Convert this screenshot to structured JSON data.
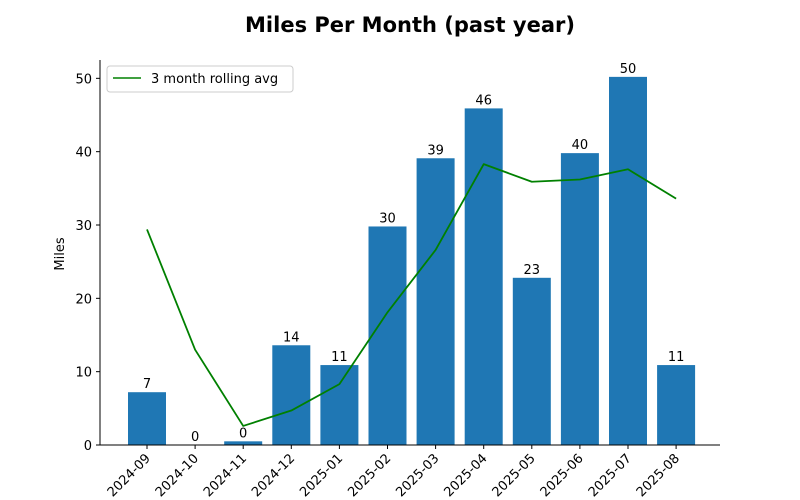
{
  "chart_data": {
    "type": "bar",
    "title": "Miles Per Month (past year)",
    "xlabel": "",
    "ylabel": "Miles",
    "ylim": [
      0,
      52.5
    ],
    "yticks": [
      0,
      10,
      20,
      30,
      40,
      50
    ],
    "categories": [
      "2024-09",
      "2024-10",
      "2024-11",
      "2024-12",
      "2025-01",
      "2025-02",
      "2025-03",
      "2025-04",
      "2025-05",
      "2025-06",
      "2025-07",
      "2025-08"
    ],
    "series": [
      {
        "name": "Miles",
        "type": "bar",
        "color": "#1f77b4",
        "values": [
          7.2,
          0.0,
          0.5,
          13.6,
          10.9,
          29.8,
          39.1,
          45.9,
          22.8,
          39.8,
          50.2,
          10.9
        ],
        "labels": [
          "7",
          "0",
          "0",
          "14",
          "11",
          "30",
          "39",
          "46",
          "23",
          "40",
          "50",
          "11"
        ]
      },
      {
        "name": "3 month rolling avg",
        "type": "line",
        "color": "#008000",
        "values": [
          29.4,
          13.0,
          2.6,
          4.7,
          8.3,
          18.1,
          26.6,
          38.3,
          35.9,
          36.2,
          37.6,
          33.6
        ]
      }
    ],
    "legend": {
      "entries": [
        "3 month rolling avg"
      ],
      "position": "top-left"
    },
    "grid": false
  }
}
